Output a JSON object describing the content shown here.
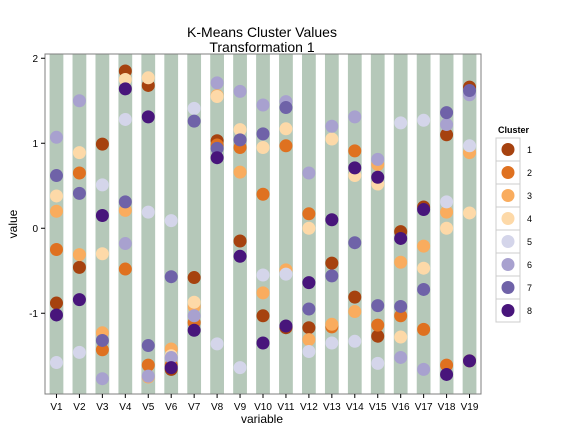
{
  "chart_data": {
    "type": "scatter",
    "title_lines": [
      "K-Means Cluster Values",
      "Transformation 1"
    ],
    "xlabel": "variable",
    "ylabel": "value",
    "categories": [
      "V1",
      "V2",
      "V3",
      "V4",
      "V5",
      "V6",
      "V7",
      "V8",
      "V9",
      "V10",
      "V11",
      "V12",
      "V13",
      "V14",
      "V15",
      "V16",
      "V17",
      "V18",
      "V19"
    ],
    "ylim": [
      -1.95,
      2.05
    ],
    "yticks": [
      2,
      1,
      0,
      -1
    ],
    "ytick_labels": [
      "2",
      "1",
      "0",
      "-1"
    ],
    "legend": {
      "title": "Cluster",
      "position": "right"
    },
    "series": [
      {
        "name": "1",
        "color": "#a6420f",
        "values": [
          -0.88,
          -0.46,
          0.99,
          1.85,
          1.68,
          -1.66,
          -0.58,
          1.03,
          -0.15,
          -1.03,
          -1.17,
          -1.17,
          -0.41,
          -0.81,
          -1.27,
          -0.04,
          0.25,
          1.1,
          1.66
        ]
      },
      {
        "name": "2",
        "color": "#df7120",
        "values": [
          -0.25,
          0.65,
          -1.43,
          -0.48,
          -1.61,
          -1.61,
          -1.11,
          0.98,
          0.95,
          0.4,
          0.97,
          0.17,
          -1.16,
          0.91,
          -1.14,
          -1.03,
          -1.19,
          -1.61,
          -1.56
        ]
      },
      {
        "name": "3",
        "color": "#f9ac5e",
        "values": [
          0.2,
          -0.31,
          -1.23,
          0.21,
          -1.75,
          -1.42,
          -0.92,
          1.56,
          0.66,
          -0.76,
          -0.49,
          -1.31,
          -1.13,
          -0.98,
          0.75,
          -0.4,
          -0.21,
          0.19,
          0.89
        ]
      },
      {
        "name": "4",
        "color": "#fdd9a8",
        "values": [
          0.38,
          0.89,
          -0.3,
          1.75,
          1.77,
          -1.5,
          -0.87,
          1.55,
          1.16,
          0.95,
          1.17,
          0.0,
          1.05,
          0.62,
          0.52,
          -1.28,
          -0.47,
          0.0,
          0.18
        ]
      },
      {
        "name": "5",
        "color": "#d4d5ea",
        "values": [
          -1.58,
          -1.46,
          0.51,
          1.28,
          0.19,
          0.09,
          1.41,
          -1.36,
          -1.64,
          -0.55,
          -0.54,
          -1.45,
          -1.35,
          -1.33,
          -1.59,
          1.24,
          1.27,
          0.31,
          0.97
        ]
      },
      {
        "name": "6",
        "color": "#a8a1cf",
        "values": [
          1.07,
          1.5,
          -1.77,
          -0.18,
          -1.74,
          -1.52,
          -1.03,
          1.71,
          1.61,
          1.45,
          1.49,
          0.65,
          1.2,
          1.31,
          0.81,
          -1.52,
          -1.66,
          1.22,
          1.57
        ]
      },
      {
        "name": "7",
        "color": "#6f62a8",
        "values": [
          0.62,
          0.41,
          -1.32,
          0.31,
          -1.38,
          -0.57,
          1.26,
          0.94,
          1.04,
          1.11,
          1.42,
          -0.95,
          -0.56,
          -0.17,
          -0.91,
          -0.92,
          -0.72,
          1.36,
          1.62
        ]
      },
      {
        "name": "8",
        "color": "#48157b",
        "values": [
          -1.02,
          -0.84,
          0.15,
          1.64,
          1.31,
          -1.64,
          -1.2,
          0.83,
          -0.33,
          -1.35,
          -1.15,
          -0.64,
          0.1,
          0.71,
          0.6,
          -0.12,
          0.22,
          -1.72,
          -1.56
        ]
      }
    ]
  }
}
